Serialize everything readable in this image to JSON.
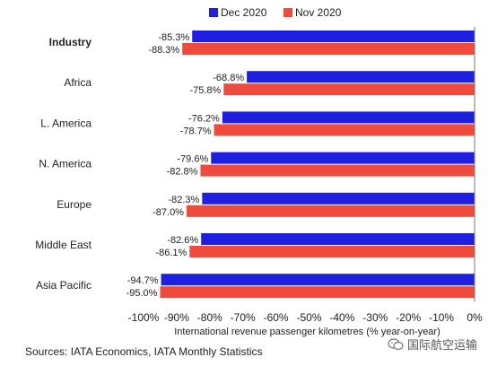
{
  "chart_data": {
    "type": "bar",
    "orientation": "horizontal",
    "categories": [
      "Industry",
      "Africa",
      "L. America",
      "N. America",
      "Europe",
      "Middle East",
      "Asia Pacific"
    ],
    "bold_categories": [
      "Industry"
    ],
    "series": [
      {
        "name": "Dec 2020",
        "color": "#1f1fe0",
        "values": [
          -85.3,
          -68.8,
          -76.2,
          -79.6,
          -82.3,
          -82.6,
          -94.7
        ],
        "labels": [
          "-85.3%",
          "-68.8%",
          "-76.2%",
          "-79.6%",
          "-82.3%",
          "-82.6%",
          "-94.7%"
        ]
      },
      {
        "name": "Nov 2020",
        "color": "#f04a3c",
        "values": [
          -88.3,
          -75.8,
          -78.7,
          -82.8,
          -87.0,
          -86.1,
          -95.0
        ],
        "labels": [
          "-88.3%",
          "-75.8%",
          "-78.7%",
          "-82.8%",
          "-87.0%",
          "-86.1%",
          "-95.0%"
        ]
      }
    ],
    "xlim": [
      -100,
      0
    ],
    "xticks": [
      -100,
      -90,
      -80,
      -70,
      -60,
      -50,
      -40,
      -30,
      -20,
      -10,
      0
    ],
    "xtick_labels": [
      "-100%",
      "-90%",
      "-80%",
      "-70%",
      "-60%",
      "-50%",
      "-40%",
      "-30%",
      "-20%",
      "-10%",
      "0%"
    ],
    "xlabel": "International revenue passenger kilometres (% year-on-year)",
    "legend_position": "top-center",
    "grid": false
  },
  "source": "Sources: IATA Economics, IATA Monthly Statistics",
  "watermark": {
    "text": "国际航空运输",
    "icon": "wechat-icon"
  }
}
